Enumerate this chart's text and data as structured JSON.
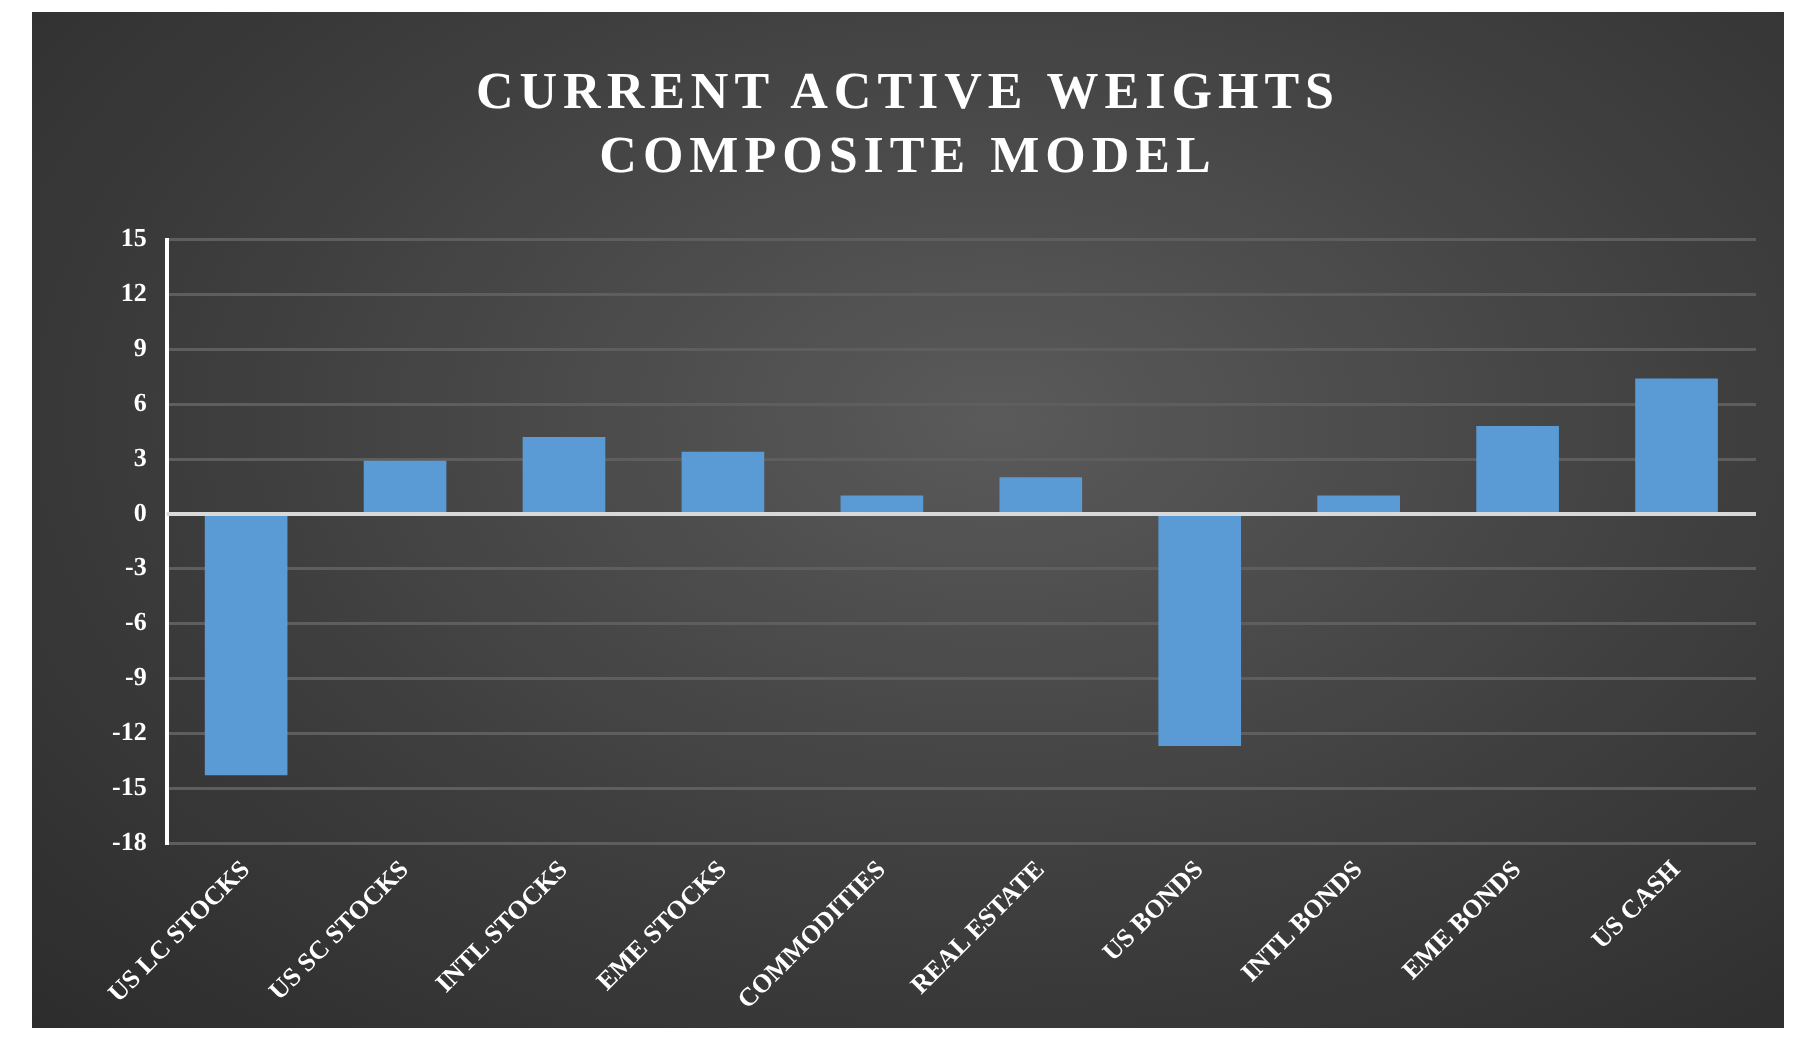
{
  "chart_data": {
    "type": "bar",
    "title": "CURRENT ACTIVE WEIGHTS COMPOSITE MODEL",
    "categories": [
      "US LC STOCKS",
      "US SC STOCKS",
      "INTL STOCKS",
      "EME STOCKS",
      "COMMODITIES",
      "REAL ESTATE",
      "US BONDS",
      "INTL BONDS",
      "EME BONDS",
      "US CASH"
    ],
    "values": [
      -14.3,
      2.9,
      4.2,
      3.4,
      1.0,
      2.0,
      -12.7,
      1.0,
      4.8,
      7.4
    ],
    "color": "#5b9bd5",
    "ylim": [
      -18,
      15
    ],
    "yticks": [
      -18,
      -15,
      -12,
      -9,
      -6,
      -3,
      0,
      3,
      6,
      9,
      12,
      15
    ],
    "grid": "y",
    "legend": false
  }
}
